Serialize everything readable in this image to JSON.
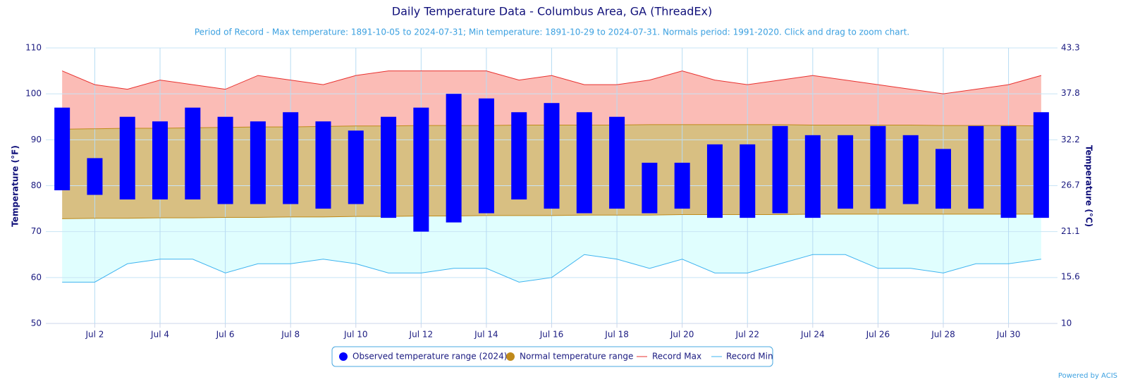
{
  "chart_data": {
    "type": "temperature-range",
    "title": "Daily Temperature Data - Columbus Area, GA (ThreadEx)",
    "subtitle": "Period of Record - Max temperature: 1891-10-05 to 2024-07-31; Min temperature: 1891-10-29 to 2024-07-31. Normals period: 1991-2020. Click and drag to zoom chart.",
    "y_label": "Temperature (°F)",
    "y2_label": "Temperature (°C)",
    "credit": "Powered by ACIS",
    "categories": [
      null,
      "Jul 2",
      null,
      "Jul 4",
      null,
      "Jul 6",
      null,
      "Jul 8",
      null,
      "Jul 10",
      null,
      "Jul 12",
      null,
      "Jul 14",
      null,
      "Jul 16",
      null,
      "Jul 18",
      null,
      "Jul 20",
      null,
      "Jul 22",
      null,
      "Jul 24",
      null,
      "Jul 26",
      null,
      "Jul 28",
      null,
      "Jul 30",
      null
    ],
    "ylim": [
      50,
      110
    ],
    "yticks": [
      50,
      60,
      70,
      80,
      90,
      100,
      110
    ],
    "y2lim": [
      10,
      43.3
    ],
    "y2ticks": [
      10,
      15.6,
      21.1,
      26.7,
      32.2,
      37.8,
      43.3
    ],
    "grid": true,
    "series": [
      {
        "name": "Observed temperature range (2024)",
        "color": "#0000ff",
        "high": [
          97,
          86,
          95,
          94,
          97,
          95,
          94,
          96,
          94,
          92,
          95,
          97,
          100,
          99,
          96,
          98,
          96,
          95,
          85,
          85,
          89,
          89,
          93,
          91,
          91,
          93,
          91,
          88,
          93,
          93,
          96
        ],
        "low": [
          79,
          78,
          77,
          77,
          77,
          76,
          76,
          76,
          75,
          76,
          73,
          70,
          72,
          74,
          77,
          75,
          74,
          75,
          74,
          75,
          73,
          73,
          74,
          73,
          75,
          75,
          76,
          75,
          75,
          73,
          73
        ]
      },
      {
        "name": "Normal temperature range",
        "color": "#c08a1a",
        "fill": "#d8bf82",
        "high": [
          92.3,
          92.4,
          92.5,
          92.5,
          92.6,
          92.7,
          92.8,
          92.8,
          92.9,
          93.0,
          93.0,
          93.1,
          93.1,
          93.1,
          93.2,
          93.2,
          93.2,
          93.2,
          93.3,
          93.3,
          93.3,
          93.3,
          93.3,
          93.2,
          93.2,
          93.2,
          93.2,
          93.1,
          93.1,
          93.1,
          93.0
        ],
        "low": [
          72.8,
          72.9,
          72.9,
          73.0,
          73.0,
          73.1,
          73.1,
          73.2,
          73.2,
          73.3,
          73.3,
          73.4,
          73.4,
          73.5,
          73.5,
          73.5,
          73.6,
          73.6,
          73.6,
          73.7,
          73.7,
          73.7,
          73.7,
          73.8,
          73.8,
          73.8,
          73.8,
          73.8,
          73.8,
          73.8,
          73.8
        ]
      },
      {
        "name": "Record Max",
        "color": "#e8312f",
        "fill": "#fbbcb6",
        "values": [
          105,
          102,
          101,
          103,
          102,
          101,
          104,
          103,
          102,
          104,
          105,
          105,
          105,
          105,
          103,
          104,
          102,
          102,
          103,
          105,
          103,
          102,
          103,
          104,
          103,
          102,
          101,
          100,
          101,
          102,
          104
        ]
      },
      {
        "name": "Record Min",
        "color": "#3fb4f0",
        "fill": "#e0fefe",
        "values": [
          59,
          59,
          63,
          64,
          64,
          61,
          63,
          63,
          64,
          63,
          61,
          61,
          62,
          62,
          59,
          60,
          65,
          64,
          62,
          64,
          61,
          61,
          63,
          65,
          65,
          62,
          62,
          61,
          63,
          63,
          64
        ]
      }
    ]
  }
}
